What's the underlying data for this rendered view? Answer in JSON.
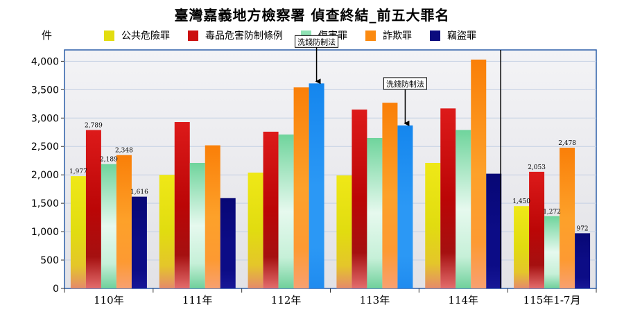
{
  "chart_data": {
    "type": "bar",
    "title": "臺灣嘉義地方檢察署 偵查終結_前五大罪名",
    "ylabel": "件",
    "ylim": [
      0,
      4200
    ],
    "yticks": [
      "0",
      "500",
      "1,000",
      "1,500",
      "2,000",
      "2,500",
      "3,000",
      "3,500",
      "4,000"
    ],
    "categories": [
      "110年",
      "111年",
      "112年",
      "113年",
      "114年",
      "115年1-7月"
    ],
    "series": [
      {
        "name": "公共危險罪",
        "values": [
          1977,
          2000,
          2040,
          1990,
          2210,
          1450
        ]
      },
      {
        "name": "毒品危害防制條例",
        "values": [
          2789,
          2930,
          2760,
          3150,
          3170,
          2053
        ]
      },
      {
        "name": "傷害罪",
        "values": [
          2189,
          2210,
          2710,
          2650,
          2790,
          1272
        ]
      },
      {
        "name": "詐欺罪",
        "values": [
          2348,
          2520,
          3540,
          3270,
          4030,
          2478
        ]
      },
      {
        "name": "竊盜罪",
        "values": [
          1616,
          1590,
          null,
          null,
          2020,
          972
        ]
      },
      {
        "name": "洗錢防制法",
        "values": [
          null,
          null,
          3610,
          2870,
          null,
          null
        ]
      }
    ],
    "data_labels": [
      {
        "category": 0,
        "series": 0,
        "text": "1,977"
      },
      {
        "category": 0,
        "series": 1,
        "text": "2,789"
      },
      {
        "category": 0,
        "series": 2,
        "text": "2,189"
      },
      {
        "category": 0,
        "series": 3,
        "text": "2,348"
      },
      {
        "category": 0,
        "series": 4,
        "text": "1,616"
      },
      {
        "category": 5,
        "series": 0,
        "text": "1,450"
      },
      {
        "category": 5,
        "series": 1,
        "text": "2,053"
      },
      {
        "category": 5,
        "series": 2,
        "text": "1,272"
      },
      {
        "category": 5,
        "series": 3,
        "text": "2,478"
      },
      {
        "category": 5,
        "series": 4,
        "text": "972"
      }
    ],
    "annotations": [
      {
        "text": "洗錢防制法",
        "category": 2
      },
      {
        "text": "洗錢防制法",
        "category": 3
      }
    ],
    "grid": true,
    "legend_position": "top",
    "colors": {
      "公共危險罪": "#e2dd10",
      "毒品危害防制條例": "#cc1010",
      "傷害罪": "#8fe3b4",
      "詐欺罪": "#fb8a10",
      "竊盜罪": "#0a0a7e",
      "洗錢防制法": "#1e8cf0"
    }
  }
}
